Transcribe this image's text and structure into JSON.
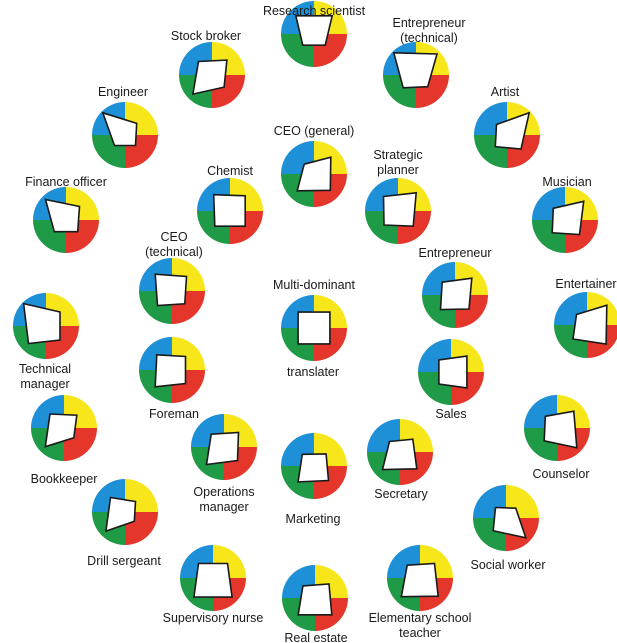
{
  "colors": {
    "blue": "#1e90d8",
    "yellow": "#f6e61a",
    "red": "#e5362b",
    "green": "#1f9a46",
    "outline": "#1a1a1a",
    "square_fill": "#ffffff"
  },
  "profiles": [
    {
      "label": "Research scientist",
      "q": [
        0.78,
        0.48,
        0.48,
        0.78
      ]
    },
    {
      "label": "Stock broker",
      "q": [
        0.58,
        0.82,
        0.52,
        0.64
      ]
    },
    {
      "label": "Entrepreneur (technical)",
      "q": [
        0.95,
        0.55,
        0.5,
        0.9
      ]
    },
    {
      "label": "Engineer",
      "q": [
        0.95,
        0.45,
        0.45,
        0.5
      ]
    },
    {
      "label": "Artist",
      "q": [
        0.45,
        0.5,
        0.6,
        0.95
      ]
    },
    {
      "label": "CEO (general)",
      "q": [
        0.42,
        0.72,
        0.7,
        0.72
      ]
    },
    {
      "label": "Chemist",
      "q": [
        0.7,
        0.65,
        0.65,
        0.65
      ]
    },
    {
      "label": "Strategic planner",
      "q": [
        0.62,
        0.6,
        0.65,
        0.78
      ]
    },
    {
      "label": "Finance officer",
      "q": [
        0.88,
        0.5,
        0.5,
        0.58
      ]
    },
    {
      "label": "Musician",
      "q": [
        0.5,
        0.55,
        0.62,
        0.8
      ]
    },
    {
      "label": "CEO (technical)",
      "q": [
        0.72,
        0.62,
        0.55,
        0.62
      ]
    },
    {
      "label": "Multi-dominant",
      "q": [
        0.68,
        0.68,
        0.68,
        0.68
      ]
    },
    {
      "label": "Entrepreneur",
      "q": [
        0.55,
        0.62,
        0.6,
        0.72
      ]
    },
    {
      "label": "Entertainer",
      "q": [
        0.45,
        0.6,
        0.82,
        0.85
      ]
    },
    {
      "label": "Technical manager",
      "q": [
        0.96,
        0.75,
        0.6,
        0.6
      ]
    },
    {
      "label": "Foreman",
      "q": [
        0.65,
        0.72,
        0.58,
        0.58
      ]
    },
    {
      "label": "Sales",
      "q": [
        0.52,
        0.52,
        0.68,
        0.68
      ]
    },
    {
      "label": "Bookkeeper",
      "q": [
        0.6,
        0.8,
        0.42,
        0.55
      ]
    },
    {
      "label": "Operations manager",
      "q": [
        0.55,
        0.75,
        0.58,
        0.62
      ]
    },
    {
      "label": "Marketing",
      "q": [
        0.5,
        0.68,
        0.62,
        0.52
      ]
    },
    {
      "label": "Secretary",
      "q": [
        0.45,
        0.75,
        0.72,
        0.55
      ]
    },
    {
      "label": "Counselor",
      "q": [
        0.5,
        0.55,
        0.85,
        0.72
      ]
    },
    {
      "label": "Drill sergeant",
      "q": [
        0.62,
        0.82,
        0.4,
        0.45
      ]
    },
    {
      "label": "Social worker",
      "q": [
        0.45,
        0.55,
        0.85,
        0.42
      ]
    },
    {
      "label": "Supervisory nurse",
      "q": [
        0.62,
        0.82,
        0.82,
        0.62
      ]
    },
    {
      "label": "Real estate",
      "q": [
        0.52,
        0.72,
        0.72,
        0.6
      ]
    },
    {
      "label": "Elementary school teacher",
      "q": [
        0.55,
        0.8,
        0.78,
        0.62
      ]
    },
    {
      "label": "translater",
      "q": []
    }
  ]
}
